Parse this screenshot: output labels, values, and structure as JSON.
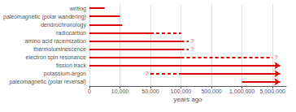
{
  "chart_data": {
    "type": "range",
    "orientation": "horizontal",
    "xlabel": "years ago",
    "categories": [
      "writing",
      "paleomagnetic (polar wandering)",
      "dendrochronology",
      "radiocarbon",
      "amino acid racemization",
      "thermoluminescence",
      "electron spin resonance",
      "fission track",
      "potassium-argon",
      "paleomagnetic (polar reversal)"
    ],
    "series": [
      {
        "line_style": "solid",
        "color": "#dd0000",
        "starts": [
          0,
          0,
          0,
          0,
          0,
          0,
          0,
          null,
          null,
          null
        ],
        "ends": [
          5000,
          10000,
          13000,
          50000,
          100000,
          100000,
          100000,
          null,
          null,
          null
        ]
      },
      {
        "line_style": "solid",
        "marker": "arrow",
        "color": "#dd0000",
        "starts": [
          null,
          null,
          null,
          null,
          null,
          null,
          null,
          0,
          100000,
          1000000
        ],
        "ends": [
          null,
          null,
          null,
          null,
          null,
          null,
          null,
          6000000,
          6000000,
          6000000
        ]
      },
      {
        "line_style": "dashed",
        "color": "#dd0000",
        "starts": [
          null,
          null,
          null,
          50000,
          100000,
          100000,
          100000,
          null,
          50000,
          null
        ],
        "ends": [
          null,
          null,
          null,
          100000,
          200000,
          200000,
          5000000,
          null,
          100000,
          null
        ]
      }
    ],
    "annotations": [
      {
        "text": "?",
        "x": 200000,
        "category": "amino acid racemization",
        "color": "#dd0000"
      },
      {
        "text": "?",
        "x": 200000,
        "category": "thermoluminescence",
        "color": "#dd0000"
      },
      {
        "text": "?",
        "x": 5000000,
        "category": "electron spin resonance",
        "color": "#dd0000"
      },
      {
        "text": "?",
        "x": 50000,
        "category": "potassium-argon",
        "color": "#dd0000"
      }
    ],
    "xlim": [
      0,
      6800000
    ],
    "xticks": [
      0,
      {
        "value": 10000,
        "label": "10,000"
      },
      {
        "value": 50000,
        "label": "50,000"
      },
      {
        "value": 100000,
        "label": "100,000"
      },
      {
        "value": 500000,
        "label": "500,000"
      },
      {
        "value": 1000000,
        "label": "1,000,000"
      },
      {
        "value": 5000000,
        "label": "5,000,000"
      }
    ],
    "grid": true
  }
}
